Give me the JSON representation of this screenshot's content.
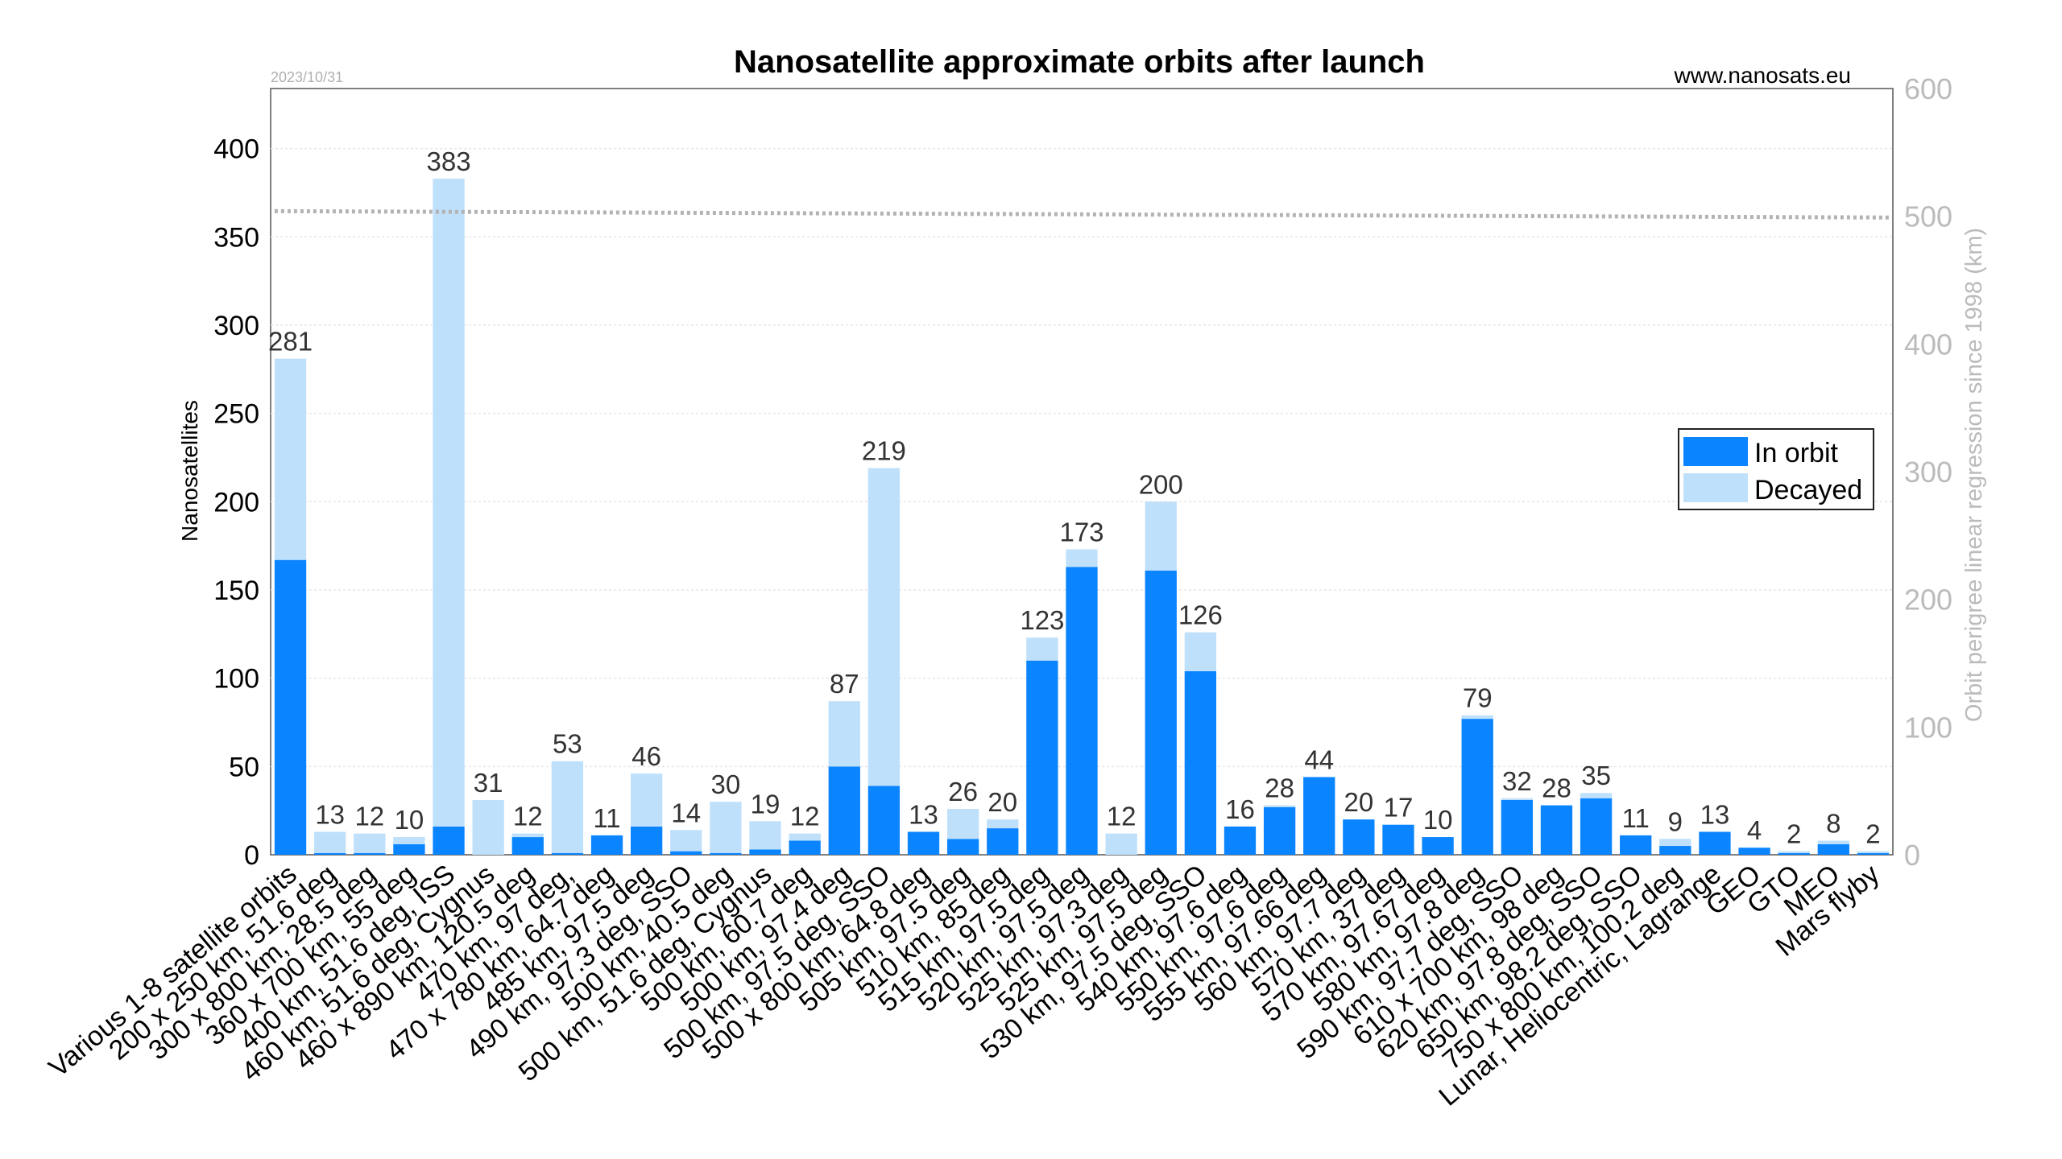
{
  "header": {
    "date": "2023/10/31",
    "source": "www.nanosats.eu"
  },
  "chart_data": {
    "type": "bar",
    "stacked": true,
    "title": "Nanosatellite approximate orbits after launch",
    "ylabel": "Nanosatellites",
    "y2label": "Orbit perigree linear regression since 1998 (km)",
    "ylim": [
      0,
      434
    ],
    "yticks": [
      0,
      50,
      100,
      150,
      200,
      250,
      300,
      350,
      400
    ],
    "y2lim": [
      0,
      600
    ],
    "y2ticks": [
      0,
      100,
      200,
      300,
      400,
      500,
      600
    ],
    "grid": true,
    "legend_position": "right",
    "colors": {
      "in_orbit": "#0a84ff",
      "decayed": "#bfe0fb",
      "regression": "#b3b3b3"
    },
    "categories": [
      "Various 1-8 satellite orbits",
      "200 x 250 km, 51.6 deg",
      "300 x 800 km, 28.5 deg",
      "360 x 700 km, 55 deg",
      "400 km, 51.6 deg, ISS",
      "460 km, 51.6 deg, Cygnus",
      "460 x 890 km, 120.5 deg",
      "470 km, 97 deg,",
      "470 x 780 km, 64.7 deg",
      "485 km, 97.5 deg",
      "490 km, 97.3 deg, SSO",
      "500 km, 40.5 deg",
      "500 km, 51.6 deg, Cygnus",
      "500 km, 60.7 deg",
      "500 km, 97.4 deg",
      "500 km, 97.5 deg, SSO",
      "500 x 800 km, 64.8 deg",
      "505 km, 97.5 deg",
      "510 km, 85 deg",
      "515 km, 97.5 deg",
      "520 km, 97.5 deg",
      "525 km, 97.3 deg",
      "525 km, 97.5 deg",
      "530 km, 97.5 deg, SSO",
      "540 km, 97.6 deg",
      "550 km, 97.6 deg",
      "555 km, 97.66 deg",
      "560 km, 97.7 deg",
      "570 km, 37 deg",
      "570 km, 97.67 deg",
      "580 km, 97.8 deg",
      "590 km, 97.7 deg, SSO",
      "610 x 700 km, 98 deg",
      "620 km, 97.8 deg, SSO",
      "650 km, 98.2 deg, SSO",
      "750 x 800 km, 100.2 deg",
      "Lunar, Heliocentric, Lagrange",
      "GEO",
      "GTO",
      "MEO",
      "Mars flyby"
    ],
    "series": [
      {
        "name": "In orbit",
        "values": [
          167,
          1,
          1,
          6,
          16,
          0,
          10,
          1,
          11,
          16,
          2,
          1,
          3,
          8,
          50,
          39,
          13,
          9,
          15,
          110,
          163,
          0,
          161,
          104,
          16,
          27,
          44,
          20,
          17,
          10,
          77,
          31,
          28,
          32,
          11,
          5,
          13,
          4,
          1,
          6,
          1
        ]
      },
      {
        "name": "Decayed",
        "values": [
          114,
          12,
          11,
          4,
          367,
          31,
          2,
          52,
          0,
          30,
          12,
          29,
          16,
          4,
          37,
          180,
          0,
          17,
          5,
          13,
          10,
          12,
          39,
          22,
          0,
          1,
          0,
          0,
          0,
          0,
          2,
          1,
          0,
          3,
          0,
          4,
          0,
          0,
          1,
          2,
          1
        ]
      }
    ],
    "totals": [
      281,
      13,
      12,
      10,
      383,
      31,
      12,
      53,
      11,
      46,
      14,
      30,
      19,
      12,
      87,
      219,
      13,
      26,
      20,
      123,
      173,
      12,
      200,
      126,
      16,
      28,
      44,
      20,
      17,
      10,
      79,
      32,
      28,
      35,
      11,
      9,
      13,
      4,
      2,
      8,
      2
    ],
    "regression_line": {
      "name": "Orbit perigree linear regression since 1998",
      "y2_start": 504,
      "y2_end": 499
    }
  }
}
